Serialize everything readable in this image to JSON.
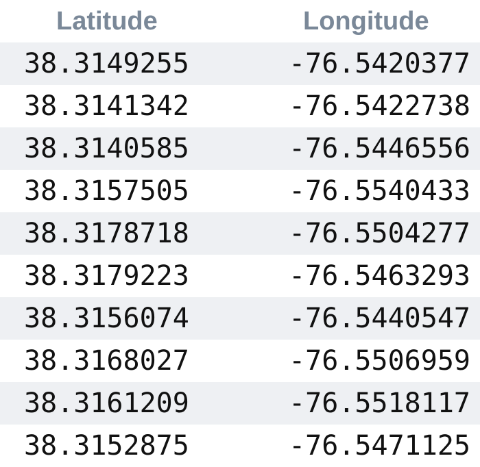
{
  "table": {
    "headers": {
      "latitude": "Latitude",
      "longitude": "Longitude"
    },
    "rows": [
      {
        "lat": "38.3149255",
        "lon": "-76.5420377"
      },
      {
        "lat": "38.3141342",
        "lon": "-76.5422738"
      },
      {
        "lat": "38.3140585",
        "lon": "-76.5446556"
      },
      {
        "lat": "38.3157505",
        "lon": "-76.5540433"
      },
      {
        "lat": "38.3178718",
        "lon": "-76.5504277"
      },
      {
        "lat": "38.3179223",
        "lon": "-76.5463293"
      },
      {
        "lat": "38.3156074",
        "lon": "-76.5440547"
      },
      {
        "lat": "38.3168027",
        "lon": "-76.5506959"
      },
      {
        "lat": "38.3161209",
        "lon": "-76.5518117"
      },
      {
        "lat": "38.3152875",
        "lon": "-76.5471125"
      }
    ]
  },
  "colors": {
    "header_text": "#7a8898",
    "stripe": "#eef0f3",
    "cell_text": "#111111"
  }
}
